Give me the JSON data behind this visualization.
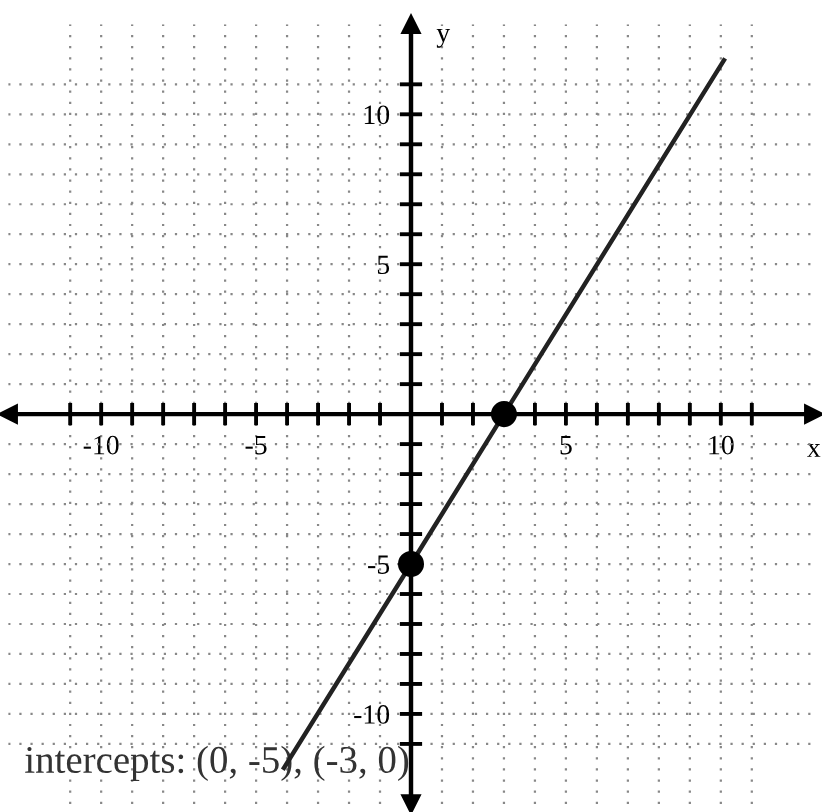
{
  "chart_data": {
    "type": "line",
    "xlabel": "x",
    "ylabel": "y",
    "annotations": [
      "intercepts: (0, -5), (-3, 0)"
    ],
    "series": [
      {
        "color": "#222222",
        "x": [
          -4.1,
          0,
          3,
          10.1
        ],
        "values": [
          -11.8,
          -5,
          0,
          11.8
        ]
      },
      {
        "type": "scatter",
        "color": "#000000",
        "x": [
          0,
          3
        ],
        "values": [
          -5,
          0
        ]
      }
    ],
    "xlim": [
      -13,
      13
    ],
    "ylim": [
      -13,
      13
    ],
    "xticks": [
      {
        "value": -11,
        "label": null
      },
      -10,
      {
        "value": -9,
        "label": null
      },
      {
        "value": -8,
        "label": null
      },
      {
        "value": -7,
        "label": null
      },
      {
        "value": -6,
        "label": null
      },
      -5,
      {
        "value": -4,
        "label": null
      },
      {
        "value": -3,
        "label": null
      },
      {
        "value": -2,
        "label": null
      },
      {
        "value": -1,
        "label": null
      },
      {
        "value": 1,
        "label": null
      },
      {
        "value": 2,
        "label": null
      },
      {
        "value": 3,
        "label": null
      },
      {
        "value": 4,
        "label": null
      },
      5,
      {
        "value": 6,
        "label": null
      },
      {
        "value": 7,
        "label": null
      },
      {
        "value": 8,
        "label": null
      },
      {
        "value": 9,
        "label": null
      },
      10,
      {
        "value": 11,
        "label": null
      }
    ],
    "yticks": [
      {
        "value": -11,
        "label": null
      },
      -10,
      {
        "value": -9,
        "label": null
      },
      {
        "value": -8,
        "label": null
      },
      {
        "value": -7,
        "label": null
      },
      {
        "value": -6,
        "label": null
      },
      -5,
      {
        "value": -4,
        "label": null
      },
      {
        "value": -3,
        "label": null
      },
      {
        "value": -2,
        "label": null
      },
      {
        "value": -1,
        "label": null
      },
      {
        "value": 1,
        "label": null
      },
      {
        "value": 2,
        "label": null
      },
      {
        "value": 3,
        "label": null
      },
      {
        "value": 4,
        "label": null
      },
      5,
      {
        "value": 6,
        "label": null
      },
      {
        "value": 7,
        "label": null
      },
      {
        "value": 8,
        "label": null
      },
      {
        "value": 9,
        "label": null
      },
      10,
      {
        "value": 11,
        "label": null
      }
    ],
    "grid": true
  }
}
